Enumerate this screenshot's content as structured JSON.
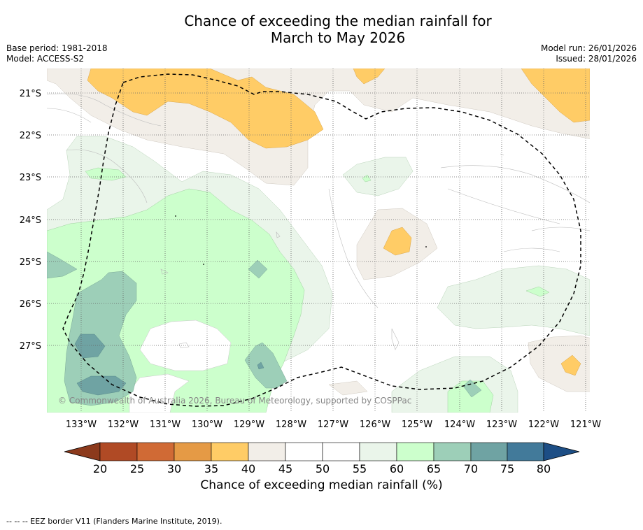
{
  "title": {
    "line1": "Chance of exceeding the median rainfall for",
    "line2": "March to May 2026"
  },
  "meta": {
    "base_period": "Base period: 1981-2018",
    "model": "Model: ACCESS-S2",
    "model_run": "Model run: 26/01/2026",
    "issued": "Issued: 28/01/2026"
  },
  "map": {
    "lat_ticks": [
      "21°S",
      "22°S",
      "23°S",
      "24°S",
      "25°S",
      "26°S",
      "27°S"
    ],
    "lon_ticks": [
      "133°W",
      "132°W",
      "131°W",
      "130°W",
      "129°W",
      "128°W",
      "127°W",
      "126°W",
      "125°W",
      "124°W",
      "123°W",
      "122°W",
      "121°W"
    ],
    "copyright": "© Commonwealth of Australia 2026, Bureau of Meteorology, supported by COSPPac"
  },
  "colorbar": {
    "labels": [
      "20",
      "25",
      "30",
      "35",
      "40",
      "45",
      "50",
      "55",
      "60",
      "65",
      "70",
      "75",
      "80"
    ],
    "label": "Chance of exceeding median rainfall (%)",
    "colors": {
      "under": "#8c3a1c",
      "c20_25": "#b04a25",
      "c25_30": "#d06a35",
      "c30_35": "#e59a45",
      "c35_40": "#ffcc66",
      "c40_45": "#f2eee8",
      "c45_50": "#ffffff",
      "c50_55": "#ffffff",
      "c55_60": "#eaf5ea",
      "c60_65": "#ccffcc",
      "c65_70": "#9dcfb8",
      "c70_75": "#6fa3a3",
      "c75_80": "#427a9a",
      "over": "#1d4e85"
    }
  },
  "footer": "--  --  -- EEZ border V11 (Flanders Marine Institute, 2019)."
}
